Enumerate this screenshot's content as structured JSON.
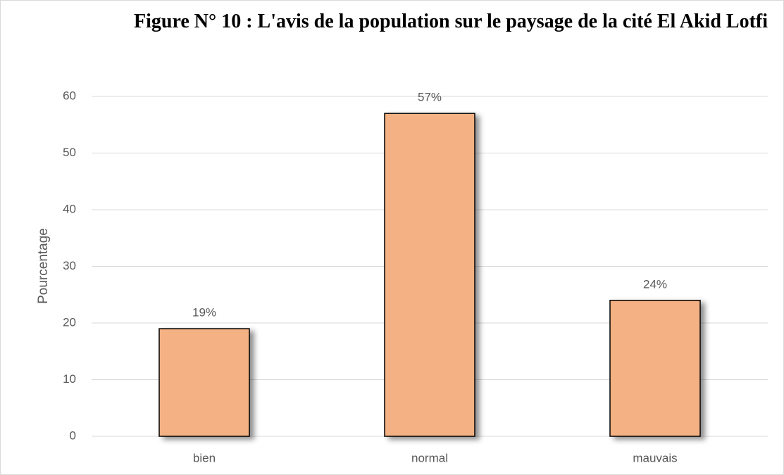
{
  "chart_data": {
    "type": "bar",
    "title": "Figure N° 10 : L'avis de la population sur le paysage de la cité El Akid Lotfi",
    "y_label": "Pourcentage",
    "categories": [
      "bien",
      "normal",
      "mauvais"
    ],
    "values": [
      19,
      57,
      24
    ],
    "value_labels": [
      "19%",
      "57%",
      "24%"
    ],
    "color": "#f4b183",
    "ylim": [
      0,
      60
    ],
    "yticks": [
      0,
      10,
      20,
      30,
      40,
      50,
      60
    ],
    "grid": true
  }
}
